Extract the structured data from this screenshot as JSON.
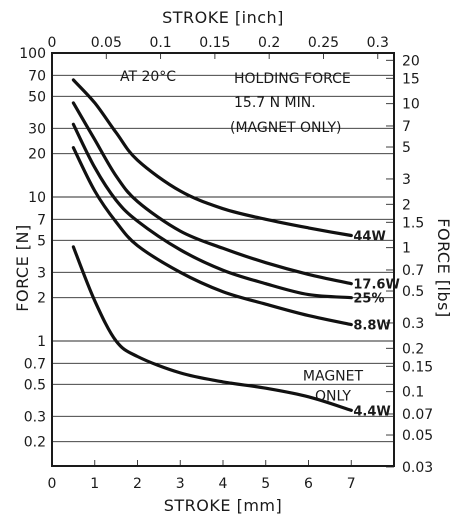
{
  "chart_data": {
    "type": "line",
    "title": "",
    "xlabel": "STROKE [mm]",
    "x2label": "STROKE [inch]",
    "ylabel": "FORCE [N]",
    "y2label": "FORCE [lbs]",
    "xlim": [
      0,
      8
    ],
    "ylim": [
      0.1355,
      100
    ],
    "yscale": "log",
    "grid": true,
    "x_ticks": [
      "0",
      "1",
      "2",
      "3",
      "4",
      "5",
      "6",
      "7"
    ],
    "x2_ticks": [
      "0",
      "0.05",
      "0.1",
      "0.15",
      "0.2",
      "0.25",
      "0.3"
    ],
    "y_ticks": [
      "100",
      "70",
      "50",
      "30",
      "20",
      "10",
      "7",
      "5",
      "3",
      "2",
      "1",
      "0.7",
      "0.5",
      "0.3",
      "0.2"
    ],
    "y2_ticks": [
      "20",
      "15",
      "10",
      "7",
      "5",
      "3",
      "2",
      "1.5",
      "1",
      "0.7",
      "0.5",
      "0.3",
      "0.2",
      "0.15",
      "0.1",
      "0.07",
      "0.05",
      "0.03"
    ],
    "annotations": {
      "temperature": "AT 20°C",
      "holding_line1": "HOLDING FORCE",
      "holding_line2": "15.7 N MIN.",
      "holding_line3": "(MAGNET ONLY)"
    },
    "series": [
      {
        "label": "44W",
        "x": [
          0.5,
          1.0,
          1.5,
          2.0,
          3.0,
          4.0,
          5.0,
          6.0,
          7.0
        ],
        "y": [
          65,
          45,
          28,
          18,
          11,
          8.3,
          7.0,
          6.1,
          5.4
        ]
      },
      {
        "label": "17.6W",
        "x": [
          0.5,
          1.0,
          1.5,
          2.0,
          3.0,
          4.0,
          5.0,
          6.0,
          7.0
        ],
        "y": [
          45,
          25,
          14,
          9.3,
          5.8,
          4.4,
          3.5,
          2.9,
          2.5
        ]
      },
      {
        "label": "25%",
        "x": [
          0.5,
          1.0,
          1.5,
          2.0,
          3.0,
          4.0,
          5.0,
          6.0,
          7.0
        ],
        "y": [
          32,
          16,
          9.5,
          6.8,
          4.3,
          3.1,
          2.5,
          2.1,
          2.0
        ]
      },
      {
        "label": "8.8W",
        "x": [
          0.5,
          1.0,
          1.5,
          2.0,
          3.0,
          4.0,
          5.0,
          6.0,
          7.0
        ],
        "y": [
          22,
          11,
          6.7,
          4.6,
          3.0,
          2.2,
          1.8,
          1.5,
          1.3
        ]
      },
      {
        "label": "4.4W",
        "x": [
          0.5,
          1.0,
          1.5,
          2.0,
          3.0,
          4.0,
          5.0,
          6.0,
          7.0
        ],
        "y": [
          4.5,
          1.9,
          1.0,
          0.78,
          0.6,
          0.52,
          0.47,
          0.41,
          0.33
        ]
      }
    ],
    "magnet_only_label": [
      "MAGNET",
      "ONLY"
    ]
  }
}
